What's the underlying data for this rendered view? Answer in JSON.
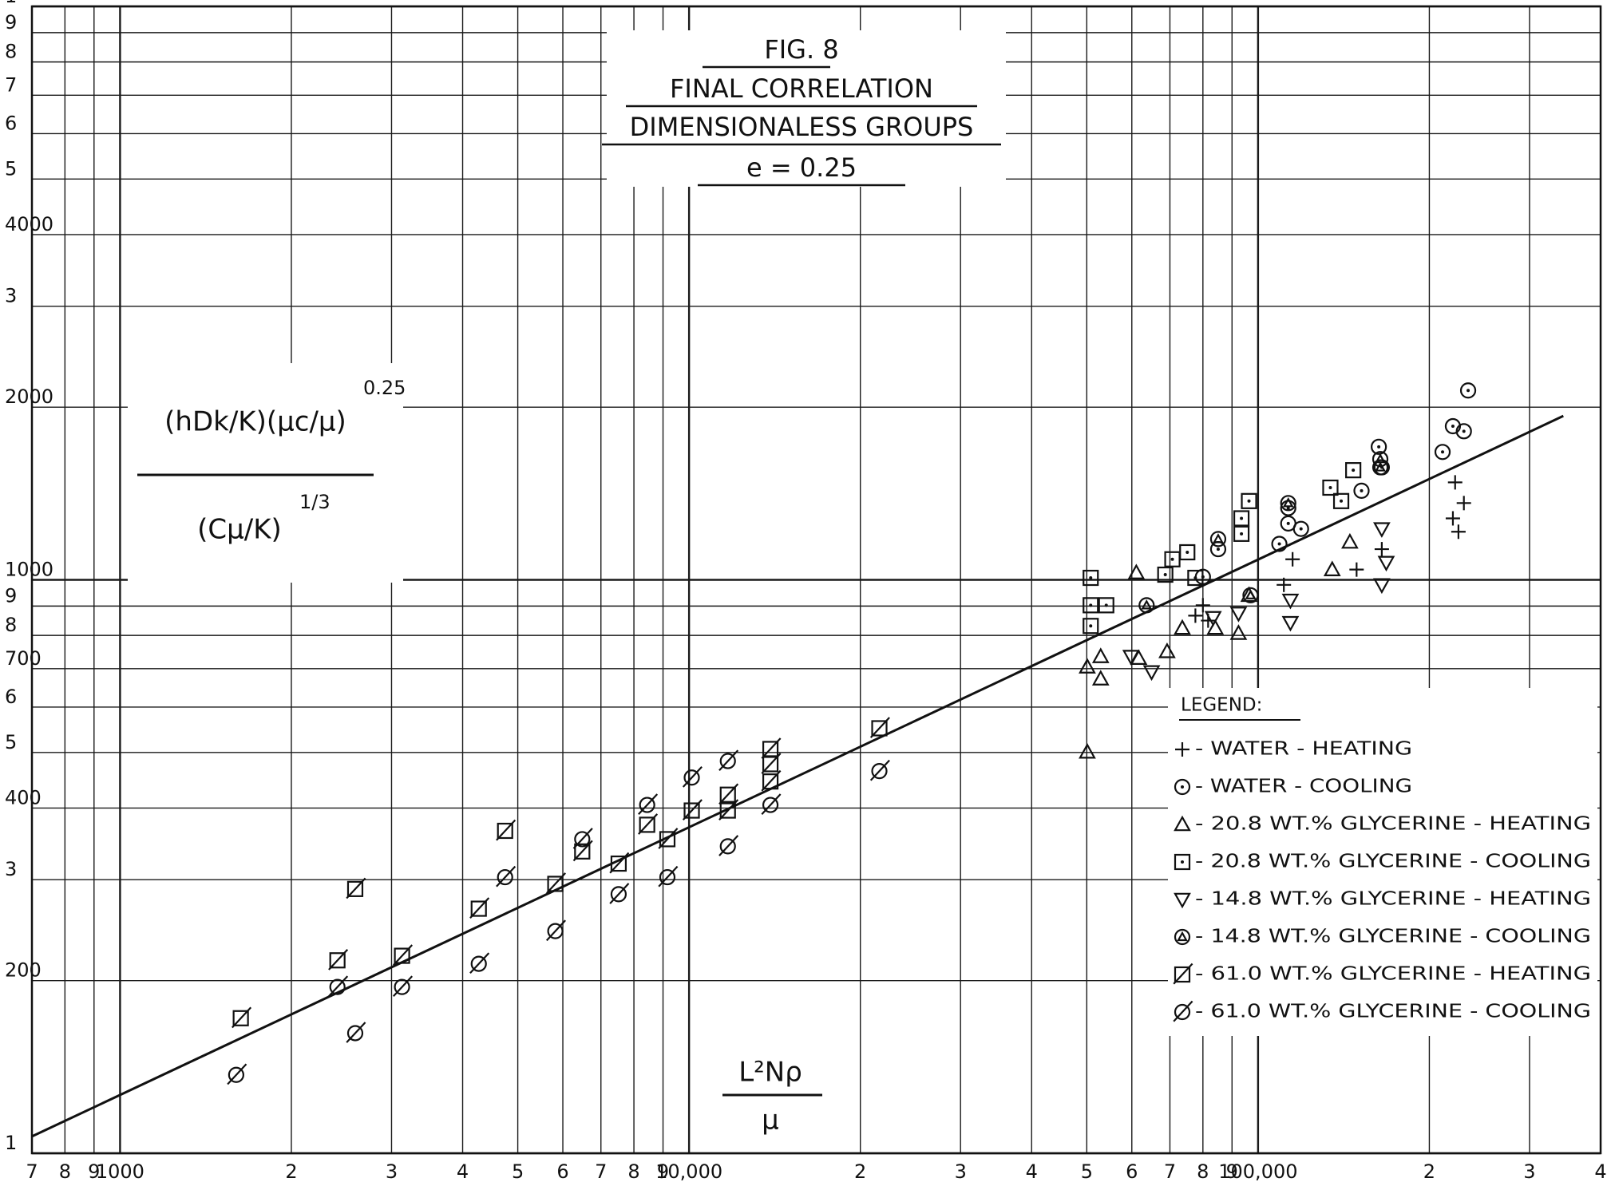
{
  "chart_data": {
    "type": "scatter",
    "title": "FIG. 8",
    "subtitle": [
      "FINAL CORRELATION",
      "DIMENSIONALESS GROUPS",
      "e = 0.25"
    ],
    "y_label": {
      "numerator": "(hDk/K)(μc/μ)",
      "exponent": "0.25",
      "denominator": "(Cμ/K)",
      "denominator_exponent": "1/3"
    },
    "x_label": {
      "numerator": "L²Nρ",
      "denominator": "μ"
    },
    "log_x": true,
    "log_y": true,
    "grid": true,
    "legend": "lower right",
    "legend_title": "LEGEND:",
    "xlim": [
      700,
      400000
    ],
    "ylim": [
      100,
      10000
    ],
    "xticks": [
      {
        "value": 700,
        "label": "7"
      },
      {
        "value": 800,
        "label": "8"
      },
      {
        "value": 900,
        "label": "9"
      },
      1000,
      {
        "value": 2000,
        "label": "2"
      },
      {
        "value": 3000,
        "label": "3"
      },
      {
        "value": 4000,
        "label": "4"
      },
      {
        "value": 5000,
        "label": "5"
      },
      {
        "value": 6000,
        "label": "6"
      },
      {
        "value": 7000,
        "label": "7"
      },
      {
        "value": 8000,
        "label": "8"
      },
      {
        "value": 9000,
        "label": "9"
      },
      {
        "value": 10000,
        "label": "10,000"
      },
      {
        "value": 20000,
        "label": "2"
      },
      {
        "value": 30000,
        "label": "3"
      },
      {
        "value": 40000,
        "label": "4"
      },
      {
        "value": 50000,
        "label": "5"
      },
      {
        "value": 60000,
        "label": "6"
      },
      {
        "value": 70000,
        "label": "7"
      },
      {
        "value": 80000,
        "label": "8"
      },
      {
        "value": 90000,
        "label": "9"
      },
      {
        "value": 100000,
        "label": "100,000"
      },
      {
        "value": 200000,
        "label": "2"
      },
      {
        "value": 300000,
        "label": "3"
      },
      {
        "value": 400000,
        "label": "4"
      }
    ],
    "yticks": [
      {
        "value": 100,
        "label": "1"
      },
      200,
      {
        "value": 300,
        "label": "3"
      },
      400,
      {
        "value": 500,
        "label": "5"
      },
      {
        "value": 600,
        "label": "6"
      },
      700,
      {
        "value": 800,
        "label": "8"
      },
      {
        "value": 900,
        "label": "9"
      },
      1000,
      2000,
      {
        "value": 3000,
        "label": "3"
      },
      4000,
      {
        "value": 5000,
        "label": "5"
      },
      {
        "value": 6000,
        "label": "6"
      },
      {
        "value": 7000,
        "label": "7"
      },
      {
        "value": 8000,
        "label": "8"
      },
      {
        "value": 9000,
        "label": "9"
      },
      {
        "value": 10000,
        "label": "1"
      }
    ],
    "fit_line": {
      "x": [
        700,
        344000
      ],
      "y": [
        107,
        1931
      ],
      "color": "#111111"
    },
    "series": [
      {
        "name": "- WATER - HEATING",
        "marker": "plus",
        "color": "#111111",
        "x": [
          80000,
          81700,
          77600,
          111000,
          115000,
          149000,
          165000,
          222000,
          230000,
          220000,
          225000
        ],
        "values": [
          903,
          849,
          866,
          980,
          1086,
          1042,
          1131,
          1479,
          1361,
          1280,
          1213
        ]
      },
      {
        "name": "- WATER - COOLING",
        "marker": "circle-dot",
        "color": "#111111",
        "x": [
          234000,
          220000,
          211000,
          230000,
          163000,
          165000,
          152000,
          113000,
          113000,
          109000,
          119000,
          85100,
          80000
        ],
        "values": [
          2139,
          1853,
          1671,
          1816,
          1706,
          1571,
          1430,
          1254,
          1334,
          1155,
          1227,
          1131,
          1012
        ]
      },
      {
        "name": "- 20.8 WT.% GLYCERINE - HEATING",
        "marker": "triangle",
        "color": "#111111",
        "x": [
          50100,
          50100,
          52900,
          52900,
          61700,
          69200,
          73600,
          84100,
          92400,
          96400,
          135000,
          145000,
          61100
        ],
        "values": [
          501,
          705,
          735,
          672,
          730,
          750,
          824,
          824,
          807,
          940,
          1042,
          1164,
          1029
        ]
      },
      {
        "name": "- 20.8 WT.% GLYCERINE - COOLING",
        "marker": "square-dot",
        "color": "#111111",
        "x": [
          50800,
          50800,
          54100,
          50800,
          68700,
          70700,
          75100,
          77600,
          96400,
          93500,
          93500,
          134000,
          140000,
          147000
        ],
        "values": [
          1008,
          903,
          903,
          831,
          1021,
          1086,
          1117,
          1008,
          1372,
          1280,
          1203,
          1448,
          1372,
          1553
        ]
      },
      {
        "name": "- 14.8 WT.% GLYCERINE - HEATING",
        "marker": "triangle-down",
        "color": "#111111",
        "x": [
          59800,
          65000,
          83400,
          92400,
          114000,
          114000,
          165000,
          165000,
          168000
        ],
        "values": [
          735,
          691,
          859,
          874,
          921,
          842,
          980,
          1227,
          1072
        ]
      },
      {
        "name": "- 14.8 WT.% GLYCERINE - COOLING",
        "marker": "circle-triangle",
        "color": "#111111",
        "x": [
          63700,
          85100,
          113000,
          164000,
          164000,
          97000
        ],
        "values": [
          903,
          1178,
          1361,
          1624,
          1571,
          940
        ]
      },
      {
        "name": "- 61.0 WT.% GLYCERINE - HEATING",
        "marker": "square-slash",
        "color": "#111111",
        "x": [
          1630,
          2590,
          2410,
          3130,
          4270,
          4750,
          5820,
          6490,
          7520,
          8440,
          9160,
          10110,
          11700,
          13900,
          13900,
          13900,
          21600,
          11700
        ],
        "values": [
          172,
          289,
          217,
          221,
          267,
          365,
          295,
          336,
          320,
          374,
          353,
          396,
          422,
          507,
          445,
          477,
          551,
          396
        ]
      },
      {
        "name": "- 61.0 WT.% GLYCERINE - COOLING",
        "marker": "circle-slash",
        "color": "#111111",
        "x": [
          1600,
          2590,
          2410,
          3130,
          4270,
          4750,
          5820,
          6490,
          7520,
          8440,
          9160,
          10110,
          11700,
          11700,
          13900,
          21600
        ],
        "values": [
          137,
          162,
          195,
          195,
          214,
          303,
          244,
          353,
          283,
          405,
          303,
          452,
          343,
          483,
          405,
          464
        ]
      }
    ]
  }
}
